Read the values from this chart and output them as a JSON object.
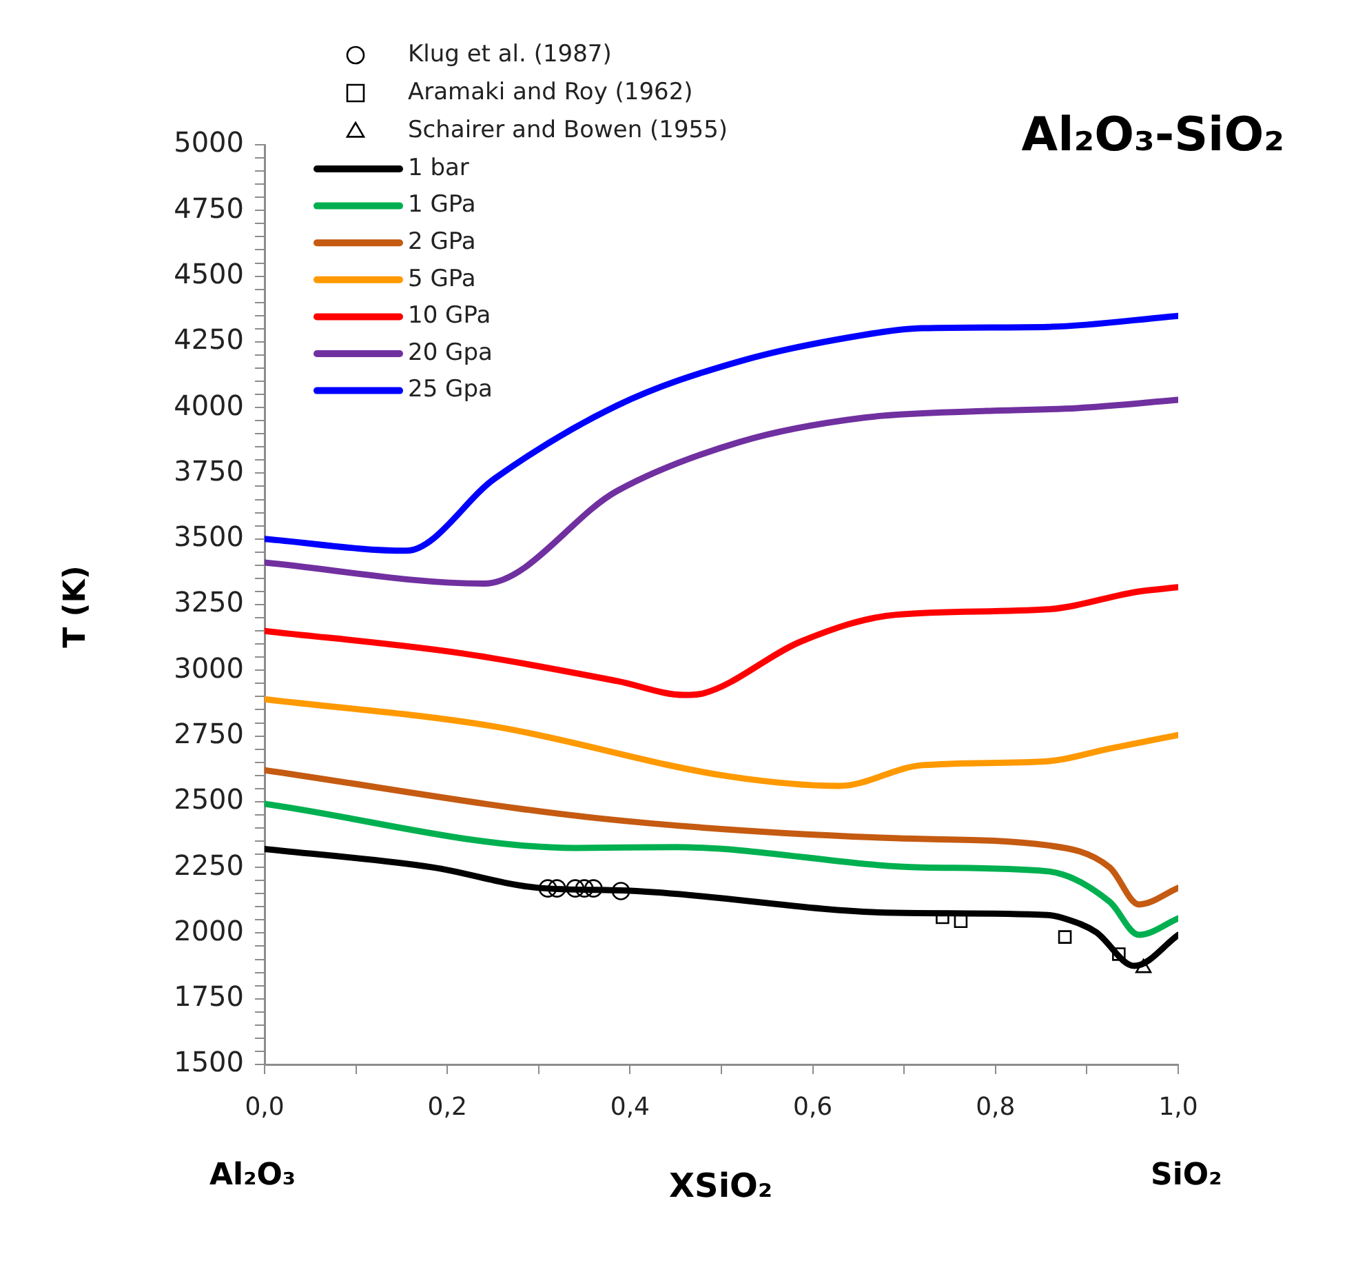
{
  "chart_data": {
    "type": "line",
    "title": "Al₂O₃-SiO₂",
    "xlabel": "XSiO₂",
    "ylabel": "T (K)",
    "annotations": [
      "Al₂O₃",
      "SiO₂"
    ],
    "legend": "top left",
    "grid": false,
    "line_style": "solid",
    "xlim": [
      0,
      1
    ],
    "ylim": [
      1500,
      5000
    ],
    "xticks": [
      {
        "value": 0,
        "label": "0,0"
      },
      {
        "value": 0.1,
        "label": null
      },
      {
        "value": 0.2,
        "label": "0,2"
      },
      {
        "value": 0.3,
        "label": null
      },
      {
        "value": 0.4,
        "label": "0,4"
      },
      {
        "value": 0.5,
        "label": null
      },
      {
        "value": 0.6,
        "label": "0,6"
      },
      {
        "value": 0.7,
        "label": null
      },
      {
        "value": 0.8,
        "label": "0,8"
      },
      {
        "value": 0.9,
        "label": null
      },
      {
        "value": 1,
        "label": "1,0"
      }
    ],
    "yticks": [
      1500,
      {
        "value": 1550,
        "label": null
      },
      {
        "value": 1600,
        "label": null
      },
      {
        "value": 1650,
        "label": null
      },
      {
        "value": 1700,
        "label": null
      },
      1750,
      {
        "value": 1800,
        "label": null
      },
      {
        "value": 1850,
        "label": null
      },
      {
        "value": 1900,
        "label": null
      },
      {
        "value": 1950,
        "label": null
      },
      2000,
      {
        "value": 2050,
        "label": null
      },
      {
        "value": 2100,
        "label": null
      },
      {
        "value": 2150,
        "label": null
      },
      {
        "value": 2200,
        "label": null
      },
      2250,
      {
        "value": 2300,
        "label": null
      },
      {
        "value": 2350,
        "label": null
      },
      {
        "value": 2400,
        "label": null
      },
      {
        "value": 2450,
        "label": null
      },
      2500,
      {
        "value": 2550,
        "label": null
      },
      {
        "value": 2600,
        "label": null
      },
      {
        "value": 2650,
        "label": null
      },
      {
        "value": 2700,
        "label": null
      },
      2750,
      {
        "value": 2800,
        "label": null
      },
      {
        "value": 2850,
        "label": null
      },
      {
        "value": 2900,
        "label": null
      },
      {
        "value": 2950,
        "label": null
      },
      3000,
      {
        "value": 3050,
        "label": null
      },
      {
        "value": 3100,
        "label": null
      },
      {
        "value": 3150,
        "label": null
      },
      {
        "value": 3200,
        "label": null
      },
      3250,
      {
        "value": 3300,
        "label": null
      },
      {
        "value": 3350,
        "label": null
      },
      {
        "value": 3400,
        "label": null
      },
      {
        "value": 3450,
        "label": null
      },
      3500,
      {
        "value": 3550,
        "label": null
      },
      {
        "value": 3600,
        "label": null
      },
      {
        "value": 3650,
        "label": null
      },
      {
        "value": 3700,
        "label": null
      },
      3750,
      {
        "value": 3800,
        "label": null
      },
      {
        "value": 3850,
        "label": null
      },
      {
        "value": 3900,
        "label": null
      },
      {
        "value": 3950,
        "label": null
      },
      4000,
      {
        "value": 4050,
        "label": null
      },
      {
        "value": 4100,
        "label": null
      },
      {
        "value": 4150,
        "label": null
      },
      {
        "value": 4200,
        "label": null
      },
      4250,
      {
        "value": 4300,
        "label": null
      },
      {
        "value": 4350,
        "label": null
      },
      {
        "value": 4400,
        "label": null
      },
      {
        "value": 4450,
        "label": null
      },
      4500,
      {
        "value": 4550,
        "label": null
      },
      {
        "value": 4600,
        "label": null
      },
      {
        "value": 4650,
        "label": null
      },
      {
        "value": 4700,
        "label": null
      },
      4750,
      {
        "value": 4800,
        "label": null
      },
      {
        "value": 4850,
        "label": null
      },
      {
        "value": 4900,
        "label": null
      },
      {
        "value": 4950,
        "label": null
      },
      5000
    ],
    "series": [
      {
        "name": "Klug et al. (1987)",
        "type": "scatter",
        "marker": "circle",
        "color": "#000000",
        "x": [
          0.31,
          0.32,
          0.34,
          0.35,
          0.36,
          0.39
        ],
        "values": [
          2170,
          2170,
          2170,
          2170,
          2170,
          2160
        ]
      },
      {
        "name": "Aramaki and Roy (1962)",
        "type": "scatter",
        "marker": "square",
        "color": "#000000",
        "x": [
          0.742,
          0.762,
          0.876,
          0.935
        ],
        "values": [
          2060,
          2045,
          1985,
          1920
        ]
      },
      {
        "name": "Schairer and Bowen (1955)",
        "type": "scatter",
        "marker": "triangle",
        "color": "#000000",
        "x": [
          0.962
        ],
        "values": [
          1867
        ]
      },
      {
        "name": "1 bar",
        "marker": "none",
        "color": "#000000",
        "x": [
          0,
          0.184,
          0.3,
          0.4,
          0.69,
          0.857,
          0.876,
          0.91,
          0.952,
          1
        ],
        "values": [
          2320,
          2250,
          2172,
          2161,
          2077,
          2069,
          2055,
          2004,
          1875,
          1993
        ]
      },
      {
        "name": "1 GPa",
        "marker": "none",
        "color": "#00b050",
        "x": [
          0,
          0.34,
          0.45,
          0.72,
          0.857,
          0.925,
          0.957,
          1
        ],
        "values": [
          2492,
          2324,
          2327,
          2250,
          2235,
          2119,
          1993,
          2056
        ]
      },
      {
        "name": "2 GPa",
        "marker": "none",
        "color": "#c55a11",
        "x": [
          0,
          0.365,
          0.69,
          0.857,
          0.925,
          0.957,
          1
        ],
        "values": [
          2620,
          2437,
          2361,
          2334,
          2250,
          2109,
          2172
        ]
      },
      {
        "name": "5 GPa",
        "marker": "none",
        "color": "#ff9900",
        "x": [
          0,
          0.252,
          0.507,
          0.629,
          0.72,
          0.857,
          0.925,
          1
        ],
        "values": [
          2890,
          2786,
          2597,
          2560,
          2639,
          2654,
          2702,
          2754
        ]
      },
      {
        "name": "10 GPa",
        "marker": "none",
        "color": "#ff0000",
        "x": [
          0,
          0.217,
          0.386,
          0.46,
          0.48,
          0.588,
          0.69,
          0.857,
          0.957,
          1
        ],
        "values": [
          3150,
          3064,
          2959,
          2906,
          2912,
          3111,
          3211,
          3232,
          3300,
          3316
        ]
      },
      {
        "name": "20 Gpa",
        "marker": "none",
        "color": "#7030a0",
        "x": [
          0,
          0.24,
          0.386,
          0.52,
          0.655,
          0.79,
          0.89,
          1
        ],
        "values": [
          3410,
          3330,
          3683,
          3869,
          3961,
          3987,
          3998,
          4029
        ]
      },
      {
        "name": "25 Gpa",
        "marker": "none",
        "color": "#0000ff",
        "x": [
          0,
          0.155,
          0.252,
          0.386,
          0.52,
          0.655,
          0.72,
          0.857,
          1
        ],
        "values": [
          3500,
          3455,
          3730,
          4008,
          4176,
          4276,
          4302,
          4307,
          4349
        ]
      }
    ]
  }
}
